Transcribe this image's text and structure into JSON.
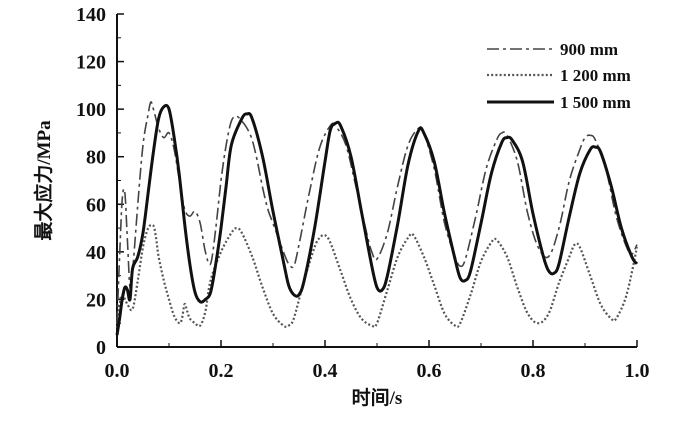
{
  "chart_data": {
    "type": "line",
    "xlabel": "时间/s",
    "ylabel": "最大应力/MPa",
    "xlim": [
      0,
      1.0
    ],
    "ylim": [
      0,
      140
    ],
    "xticks": [
      "0.0",
      "0.2",
      "0.4",
      "0.6",
      "0.8",
      "1.0"
    ],
    "yticks": [
      "0",
      "20",
      "40",
      "60",
      "80",
      "100",
      "120",
      "140"
    ],
    "grid": false,
    "legend_position": "top-right",
    "series": [
      {
        "name": "900 mm",
        "style": "dash-dot",
        "color": "#444444",
        "points": [
          [
            0.0,
            10
          ],
          [
            0.005,
            38
          ],
          [
            0.01,
            62
          ],
          [
            0.015,
            65
          ],
          [
            0.02,
            45
          ],
          [
            0.025,
            25
          ],
          [
            0.03,
            32
          ],
          [
            0.04,
            60
          ],
          [
            0.05,
            85
          ],
          [
            0.06,
            98
          ],
          [
            0.065,
            103
          ],
          [
            0.07,
            100
          ],
          [
            0.08,
            92
          ],
          [
            0.09,
            88
          ],
          [
            0.1,
            90
          ],
          [
            0.11,
            83
          ],
          [
            0.12,
            70
          ],
          [
            0.13,
            58
          ],
          [
            0.14,
            55
          ],
          [
            0.15,
            57
          ],
          [
            0.16,
            52
          ],
          [
            0.17,
            40
          ],
          [
            0.18,
            35
          ],
          [
            0.19,
            50
          ],
          [
            0.2,
            70
          ],
          [
            0.21,
            85
          ],
          [
            0.22,
            95
          ],
          [
            0.23,
            97
          ],
          [
            0.24,
            95
          ],
          [
            0.25,
            92
          ],
          [
            0.26,
            87
          ],
          [
            0.27,
            78
          ],
          [
            0.28,
            67
          ],
          [
            0.29,
            58
          ],
          [
            0.3,
            52
          ],
          [
            0.31,
            46
          ],
          [
            0.32,
            40
          ],
          [
            0.33,
            35
          ],
          [
            0.34,
            34
          ],
          [
            0.35,
            43
          ],
          [
            0.37,
            65
          ],
          [
            0.39,
            84
          ],
          [
            0.41,
            93
          ],
          [
            0.42,
            93
          ],
          [
            0.44,
            85
          ],
          [
            0.46,
            67
          ],
          [
            0.48,
            48
          ],
          [
            0.49,
            40
          ],
          [
            0.5,
            37
          ],
          [
            0.52,
            48
          ],
          [
            0.54,
            68
          ],
          [
            0.56,
            85
          ],
          [
            0.58,
            92
          ],
          [
            0.59,
            90
          ],
          [
            0.61,
            75
          ],
          [
            0.63,
            52
          ],
          [
            0.65,
            38
          ],
          [
            0.66,
            34
          ],
          [
            0.67,
            37
          ],
          [
            0.69,
            55
          ],
          [
            0.71,
            75
          ],
          [
            0.73,
            87
          ],
          [
            0.74,
            90
          ],
          [
            0.75,
            89
          ],
          [
            0.77,
            78
          ],
          [
            0.79,
            56
          ],
          [
            0.81,
            42
          ],
          [
            0.83,
            38
          ],
          [
            0.85,
            50
          ],
          [
            0.87,
            70
          ],
          [
            0.89,
            83
          ],
          [
            0.9,
            88
          ],
          [
            0.91,
            89
          ],
          [
            0.92,
            87
          ],
          [
            0.94,
            75
          ],
          [
            0.96,
            55
          ],
          [
            0.98,
            42
          ],
          [
            0.99,
            39
          ],
          [
            1.0,
            43
          ]
        ]
      },
      {
        "name": "1 200 mm",
        "style": "dotted",
        "color": "#555555",
        "points": [
          [
            0.0,
            8
          ],
          [
            0.005,
            18
          ],
          [
            0.01,
            22
          ],
          [
            0.02,
            18
          ],
          [
            0.03,
            16
          ],
          [
            0.04,
            28
          ],
          [
            0.05,
            42
          ],
          [
            0.06,
            50
          ],
          [
            0.07,
            51
          ],
          [
            0.075,
            46
          ],
          [
            0.08,
            38
          ],
          [
            0.09,
            28
          ],
          [
            0.1,
            20
          ],
          [
            0.11,
            13
          ],
          [
            0.12,
            10
          ],
          [
            0.125,
            12
          ],
          [
            0.13,
            18
          ],
          [
            0.135,
            15
          ],
          [
            0.14,
            12
          ],
          [
            0.15,
            10
          ],
          [
            0.16,
            9
          ],
          [
            0.17,
            15
          ],
          [
            0.18,
            28
          ],
          [
            0.2,
            40
          ],
          [
            0.22,
            48
          ],
          [
            0.23,
            50
          ],
          [
            0.24,
            48
          ],
          [
            0.26,
            38
          ],
          [
            0.28,
            25
          ],
          [
            0.3,
            14
          ],
          [
            0.32,
            9
          ],
          [
            0.33,
            9
          ],
          [
            0.34,
            12
          ],
          [
            0.36,
            28
          ],
          [
            0.38,
            42
          ],
          [
            0.39,
            46
          ],
          [
            0.4,
            47
          ],
          [
            0.41,
            44
          ],
          [
            0.43,
            32
          ],
          [
            0.45,
            20
          ],
          [
            0.47,
            12
          ],
          [
            0.49,
            9
          ],
          [
            0.5,
            10
          ],
          [
            0.52,
            24
          ],
          [
            0.54,
            38
          ],
          [
            0.56,
            46
          ],
          [
            0.57,
            47
          ],
          [
            0.59,
            38
          ],
          [
            0.61,
            26
          ],
          [
            0.63,
            14
          ],
          [
            0.65,
            9
          ],
          [
            0.66,
            10
          ],
          [
            0.68,
            22
          ],
          [
            0.7,
            36
          ],
          [
            0.72,
            44
          ],
          [
            0.73,
            45
          ],
          [
            0.75,
            38
          ],
          [
            0.77,
            25
          ],
          [
            0.79,
            14
          ],
          [
            0.81,
            10
          ],
          [
            0.83,
            14
          ],
          [
            0.85,
            27
          ],
          [
            0.87,
            38
          ],
          [
            0.88,
            43
          ],
          [
            0.89,
            42
          ],
          [
            0.91,
            30
          ],
          [
            0.93,
            18
          ],
          [
            0.95,
            12
          ],
          [
            0.96,
            12
          ],
          [
            0.98,
            22
          ],
          [
            1.0,
            42
          ]
        ]
      },
      {
        "name": "1 500 mm",
        "style": "solid",
        "color": "#111111",
        "points": [
          [
            0.0,
            5
          ],
          [
            0.005,
            12
          ],
          [
            0.01,
            20
          ],
          [
            0.015,
            25
          ],
          [
            0.02,
            24
          ],
          [
            0.025,
            20
          ],
          [
            0.03,
            33
          ],
          [
            0.04,
            38
          ],
          [
            0.05,
            48
          ],
          [
            0.06,
            65
          ],
          [
            0.07,
            82
          ],
          [
            0.08,
            96
          ],
          [
            0.09,
            101
          ],
          [
            0.1,
            100
          ],
          [
            0.11,
            88
          ],
          [
            0.12,
            72
          ],
          [
            0.13,
            52
          ],
          [
            0.14,
            35
          ],
          [
            0.15,
            23
          ],
          [
            0.16,
            19
          ],
          [
            0.17,
            20
          ],
          [
            0.18,
            23
          ],
          [
            0.19,
            35
          ],
          [
            0.2,
            50
          ],
          [
            0.21,
            68
          ],
          [
            0.22,
            85
          ],
          [
            0.24,
            96
          ],
          [
            0.25,
            98
          ],
          [
            0.26,
            96
          ],
          [
            0.28,
            80
          ],
          [
            0.3,
            57
          ],
          [
            0.32,
            36
          ],
          [
            0.33,
            26
          ],
          [
            0.34,
            22
          ],
          [
            0.35,
            22
          ],
          [
            0.36,
            28
          ],
          [
            0.38,
            50
          ],
          [
            0.4,
            78
          ],
          [
            0.41,
            91
          ],
          [
            0.42,
            94
          ],
          [
            0.43,
            93
          ],
          [
            0.45,
            80
          ],
          [
            0.47,
            57
          ],
          [
            0.49,
            34
          ],
          [
            0.5,
            25
          ],
          [
            0.51,
            24
          ],
          [
            0.52,
            30
          ],
          [
            0.54,
            52
          ],
          [
            0.56,
            77
          ],
          [
            0.58,
            91
          ],
          [
            0.59,
            90
          ],
          [
            0.61,
            78
          ],
          [
            0.63,
            56
          ],
          [
            0.65,
            37
          ],
          [
            0.66,
            29
          ],
          [
            0.67,
            28
          ],
          [
            0.68,
            32
          ],
          [
            0.7,
            52
          ],
          [
            0.72,
            73
          ],
          [
            0.74,
            86
          ],
          [
            0.75,
            88
          ],
          [
            0.76,
            87
          ],
          [
            0.78,
            78
          ],
          [
            0.8,
            56
          ],
          [
            0.82,
            38
          ],
          [
            0.83,
            32
          ],
          [
            0.84,
            31
          ],
          [
            0.85,
            35
          ],
          [
            0.87,
            55
          ],
          [
            0.89,
            73
          ],
          [
            0.91,
            83
          ],
          [
            0.92,
            84
          ],
          [
            0.93,
            82
          ],
          [
            0.95,
            68
          ],
          [
            0.97,
            50
          ],
          [
            0.99,
            38
          ],
          [
            1.0,
            35
          ]
        ]
      }
    ]
  }
}
